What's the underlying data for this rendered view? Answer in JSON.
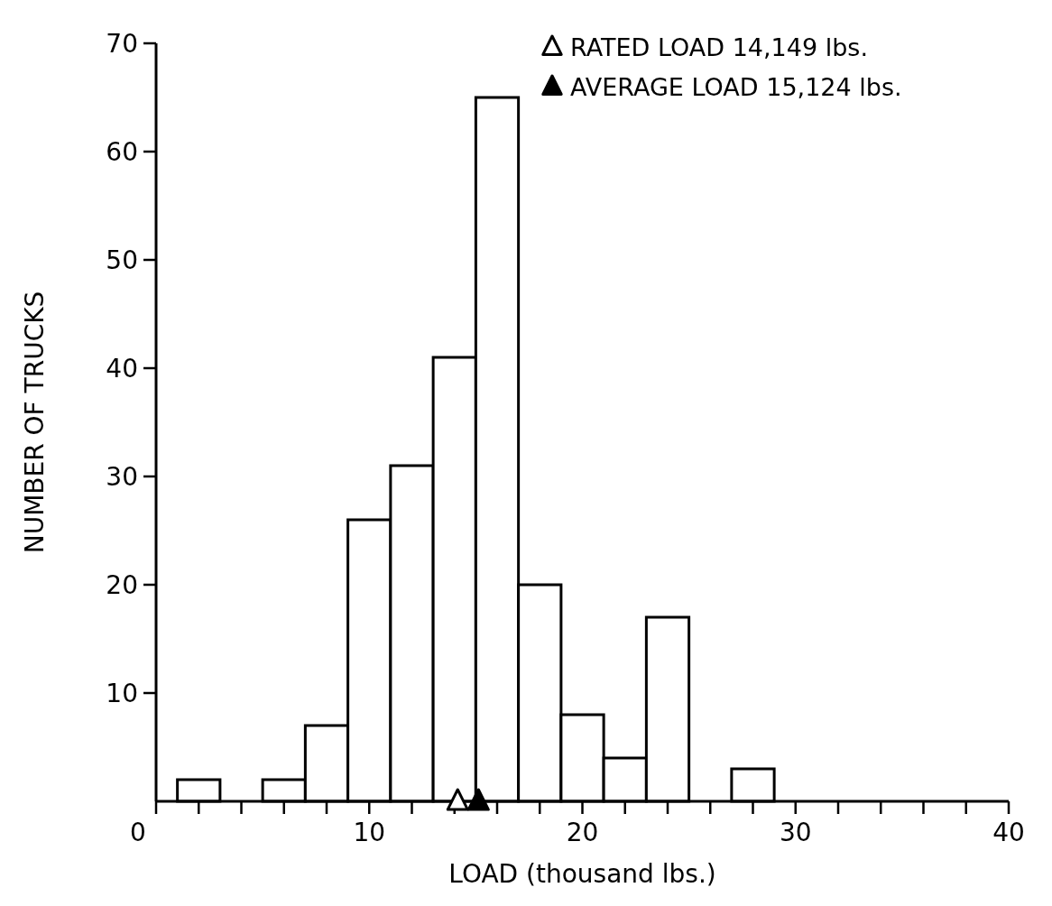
{
  "chart_data": {
    "type": "histogram",
    "xlabel": "LOAD (thousand lbs.)",
    "ylabel": "NUMBER OF TRUCKS",
    "bins": [
      1,
      3,
      5,
      7,
      9,
      11,
      13,
      15,
      17,
      19,
      21,
      23,
      25,
      27,
      29
    ],
    "values": [
      2,
      0,
      2,
      7,
      26,
      31,
      41,
      65,
      20,
      8,
      4,
      17,
      0,
      3
    ],
    "color": "#ffffff",
    "series": [
      {
        "name": "RATED LOAD 14,149 lbs.",
        "type": "scatter",
        "x": [
          14.149
        ],
        "values": [
          0
        ],
        "color": "#ffffff"
      },
      {
        "name": "AVERAGE LOAD 15,124 lbs.",
        "type": "scatter",
        "x": [
          15.124
        ],
        "values": [
          0
        ],
        "color": "#000000"
      }
    ],
    "marker": "triangle",
    "legend": "top right",
    "grid": false,
    "xlim": [
      0,
      40
    ],
    "ylim": [
      0,
      70
    ],
    "xticks": [
      0,
      {
        "value": 2,
        "label": null
      },
      {
        "value": 4,
        "label": null
      },
      {
        "value": 6,
        "label": null
      },
      {
        "value": 8,
        "label": null
      },
      10,
      {
        "value": 12,
        "label": null
      },
      {
        "value": 14,
        "label": null
      },
      {
        "value": 16,
        "label": null
      },
      {
        "value": 18,
        "label": null
      },
      20,
      {
        "value": 22,
        "label": null
      },
      {
        "value": 24,
        "label": null
      },
      {
        "value": 26,
        "label": null
      },
      {
        "value": 28,
        "label": null
      },
      30,
      {
        "value": 32,
        "label": null
      },
      {
        "value": 34,
        "label": null
      },
      {
        "value": 36,
        "label": null
      },
      {
        "value": 38,
        "label": null
      },
      40
    ],
    "yticks": [
      10,
      20,
      30,
      40,
      50,
      60,
      70
    ]
  }
}
